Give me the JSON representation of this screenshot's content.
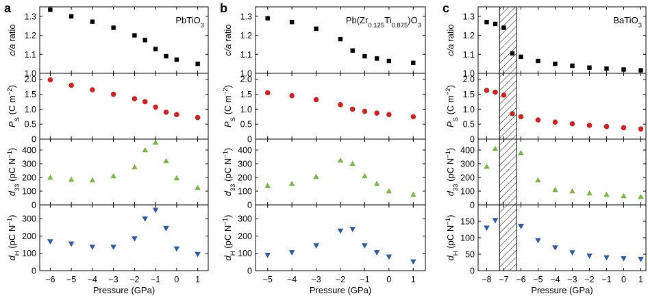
{
  "chart_data": [
    {
      "type": "scatter",
      "panel_label": "a",
      "material": {
        "main": "PbTiO",
        "sub": "3"
      },
      "xlabel": "Pressure (GPa)",
      "xlim": [
        -6.5,
        1.5
      ],
      "xticks": [
        -6,
        -5,
        -4,
        -3,
        -2,
        -1,
        0,
        1
      ],
      "xtick_labels": [
        "−6",
        "−5",
        "−4",
        "−3",
        "−2",
        "−1",
        "0",
        "1"
      ],
      "shade": null,
      "subplots": [
        {
          "key": "ca",
          "ylabel": "c/a ratio",
          "ylim": [
            1.0,
            1.35
          ],
          "yticks": [
            1.0,
            1.1,
            1.2,
            1.3
          ],
          "ytick_labels": [
            "1.0",
            "1.1",
            "1.2",
            "1.3"
          ],
          "marker": "square",
          "color": "#000000",
          "x": [
            -6,
            -5,
            -4,
            -3,
            -2,
            -1.5,
            -1,
            -0.5,
            0,
            1
          ],
          "y": [
            1.335,
            1.3,
            1.272,
            1.24,
            1.2,
            1.175,
            1.128,
            1.09,
            1.072,
            1.05
          ]
        },
        {
          "key": "ps",
          "ylabel": "P_S (C m^-2)",
          "ylim": [
            0,
            2.2
          ],
          "yticks": [
            0,
            0.5,
            1.0,
            1.5,
            2.0
          ],
          "ytick_labels": [
            "0",
            "0.5",
            "1.0",
            "1.5",
            "2.0"
          ],
          "marker": "circle",
          "color": "#cc2222",
          "x": [
            -6,
            -5,
            -4,
            -3,
            -2,
            -1.5,
            -1,
            -0.5,
            0,
            1
          ],
          "y": [
            1.98,
            1.8,
            1.65,
            1.5,
            1.35,
            1.25,
            1.07,
            0.9,
            0.82,
            0.72
          ]
        },
        {
          "key": "d33",
          "ylabel": "d_33 (pC N^-1)",
          "ylim": [
            0,
            480
          ],
          "yticks": [
            0,
            100,
            200,
            300,
            400
          ],
          "ytick_labels": [
            "0",
            "100",
            "200",
            "300",
            "400"
          ],
          "marker": "triangle-up",
          "color": "#7ab648",
          "x": [
            -6,
            -5,
            -4,
            -3,
            -2,
            -1.5,
            -1,
            -0.5,
            0,
            1
          ],
          "y": [
            200,
            185,
            180,
            210,
            275,
            400,
            455,
            320,
            195,
            125
          ]
        },
        {
          "key": "dh",
          "ylabel": "d_H (pC N^-1)",
          "ylim": [
            0,
            380
          ],
          "yticks": [
            0,
            100,
            200,
            300
          ],
          "ytick_labels": [
            "0",
            "100",
            "200",
            "300"
          ],
          "marker": "triangle-down",
          "color": "#2c5aa0",
          "x": [
            -6,
            -5,
            -4,
            -3,
            -2,
            -1.5,
            -1,
            -0.5,
            0,
            1
          ],
          "y": [
            168,
            155,
            137,
            137,
            185,
            300,
            350,
            245,
            127,
            95
          ]
        }
      ]
    },
    {
      "type": "scatter",
      "panel_label": "b",
      "material": {
        "main": "Pb(Zr",
        "sub1": "0.125",
        "mid": "Ti",
        "sub2": "0.875",
        "end": ")O",
        "sub3": "3"
      },
      "xlabel": "Pressure (GPa)",
      "xlim": [
        -5.5,
        1.5
      ],
      "xticks": [
        -5,
        -4,
        -3,
        -2,
        -1,
        0,
        1
      ],
      "xtick_labels": [
        "−5",
        "−4",
        "−3",
        "−2",
        "−1",
        "0",
        "1"
      ],
      "shade": null,
      "subplots": [
        {
          "key": "ca",
          "ylabel": "c/a ratio",
          "ylim": [
            1.0,
            1.35
          ],
          "yticks": [
            1.0,
            1.1,
            1.2,
            1.3
          ],
          "ytick_labels": [
            "1.0",
            "1.1",
            "1.2",
            "1.3"
          ],
          "marker": "square",
          "color": "#000000",
          "x": [
            -5,
            -4,
            -3,
            -2,
            -1.5,
            -1,
            -0.5,
            0,
            1
          ],
          "y": [
            1.29,
            1.27,
            1.235,
            1.18,
            1.12,
            1.09,
            1.078,
            1.065,
            1.055
          ]
        },
        {
          "key": "ps",
          "ylabel": "P_S (C m^-2)",
          "ylim": [
            0,
            2.2
          ],
          "yticks": [
            0,
            0.5,
            1.0,
            1.5,
            2.0
          ],
          "ytick_labels": [
            "0",
            "0.5",
            "1.0",
            "1.5",
            "2.0"
          ],
          "marker": "circle",
          "color": "#cc2222",
          "x": [
            -5,
            -4,
            -3,
            -2,
            -1.5,
            -1,
            -0.5,
            0,
            1
          ],
          "y": [
            1.55,
            1.45,
            1.32,
            1.15,
            1.0,
            0.93,
            0.87,
            0.82,
            0.75
          ]
        },
        {
          "key": "d33",
          "ylabel": "d_33 (pC N^-1)",
          "ylim": [
            0,
            480
          ],
          "yticks": [
            0,
            100,
            200,
            300,
            400
          ],
          "ytick_labels": [
            "0",
            "100",
            "200",
            "300",
            "400"
          ],
          "marker": "triangle-up",
          "color": "#7ab648",
          "x": [
            -5,
            -4,
            -3,
            -2,
            -1.5,
            -1,
            -0.5,
            0,
            1
          ],
          "y": [
            140,
            155,
            205,
            325,
            300,
            210,
            155,
            100,
            75
          ]
        },
        {
          "key": "dh",
          "ylabel": "d_H (pC N^-1)",
          "ylim": [
            0,
            380
          ],
          "yticks": [
            0,
            100,
            200,
            300
          ],
          "ytick_labels": [
            "0",
            "100",
            "200",
            "300"
          ],
          "marker": "triangle-down",
          "color": "#2c5aa0",
          "x": [
            -5,
            -4,
            -3,
            -2,
            -1.5,
            -1,
            -0.5,
            0,
            1
          ],
          "y": [
            90,
            105,
            145,
            230,
            240,
            145,
            105,
            80,
            52
          ]
        }
      ]
    },
    {
      "type": "scatter",
      "panel_label": "c",
      "material": {
        "main": "BaTiO",
        "sub": "3"
      },
      "xlabel": "Pressure (GPa)",
      "xlim": [
        -8.5,
        1.3
      ],
      "xticks": [
        -8,
        -7,
        -6,
        -5,
        -4,
        -3,
        -2,
        -1,
        0,
        1
      ],
      "xtick_labels": [
        "−8",
        "−7",
        "−6",
        "−5",
        "−4",
        "−3",
        "−2",
        "−1",
        "0",
        "1"
      ],
      "shade": [
        -7.25,
        -6.25
      ],
      "subplots": [
        {
          "key": "ca",
          "ylabel": "c/a ratio",
          "ylim": [
            1.0,
            1.35
          ],
          "yticks": [
            1.0,
            1.1,
            1.2,
            1.3
          ],
          "ytick_labels": [
            "1.0",
            "1.1",
            "1.2",
            "1.3"
          ],
          "marker": "square",
          "color": "#000000",
          "x": [
            -8,
            -7.5,
            -7,
            -6.5,
            -6,
            -5,
            -4,
            -3,
            -2,
            -1,
            0,
            1
          ],
          "y": [
            1.27,
            1.26,
            1.24,
            1.105,
            1.087,
            1.065,
            1.05,
            1.04,
            1.03,
            1.025,
            1.02,
            1.016
          ]
        },
        {
          "key": "ps",
          "ylabel": "P_S (C m^-2)",
          "ylim": [
            0,
            2.2
          ],
          "yticks": [
            0,
            0.5,
            1.0,
            1.5,
            2.0
          ],
          "ytick_labels": [
            "0",
            "0.5",
            "1.0",
            "1.5",
            "2.0"
          ],
          "marker": "circle",
          "color": "#cc2222",
          "x": [
            -8,
            -7.5,
            -7,
            -6.5,
            -6,
            -5,
            -4,
            -3,
            -2,
            -1,
            0,
            1
          ],
          "y": [
            1.63,
            1.57,
            1.47,
            0.85,
            0.75,
            0.64,
            0.57,
            0.51,
            0.46,
            0.42,
            0.38,
            0.34
          ]
        },
        {
          "key": "d33",
          "ylabel": "d_33 (pC N^-1)",
          "ylim": [
            0,
            480
          ],
          "yticks": [
            0,
            100,
            200,
            300,
            400
          ],
          "ytick_labels": [
            "0",
            "100",
            "200",
            "300",
            "400"
          ],
          "marker": "triangle-up",
          "color": "#7ab648",
          "x": [
            -8,
            -7.5,
            -6,
            -5,
            -4,
            -3,
            -2,
            -1,
            0,
            1
          ],
          "y": [
            280,
            410,
            380,
            180,
            110,
            100,
            85,
            75,
            65,
            60
          ]
        },
        {
          "key": "dh",
          "ylabel": "d_H (pC N^-1)",
          "ylim": [
            0,
            200
          ],
          "yticks": [
            0,
            50,
            100,
            150
          ],
          "ytick_labels": [
            "0",
            "50",
            "100",
            "150"
          ],
          "marker": "triangle-down",
          "color": "#2c5aa0",
          "x": [
            -8,
            -7.5,
            -6,
            -5,
            -4,
            -3,
            -2,
            -1,
            0,
            1
          ],
          "y": [
            130,
            153,
            135,
            92,
            70,
            55,
            45,
            40,
            37,
            35
          ]
        }
      ]
    }
  ]
}
